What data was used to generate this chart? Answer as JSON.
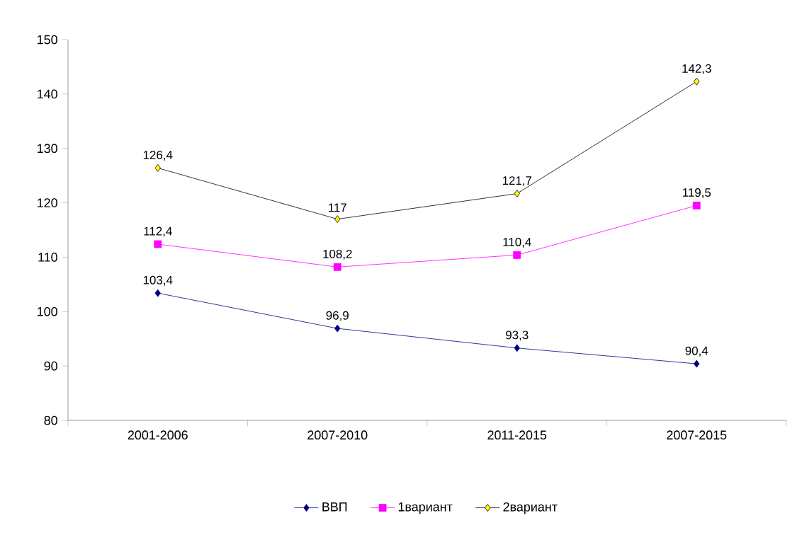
{
  "chart_data": {
    "type": "line",
    "categories": [
      "2001-2006",
      "2007-2010",
      "2011-2015",
      "2007-2015"
    ],
    "series": [
      {
        "name": "ВВП",
        "color": "#000080",
        "marker": "diamond",
        "values": [
          103.4,
          96.9,
          93.3,
          90.4
        ],
        "value_labels": [
          "103,4",
          "96,9",
          "93,3",
          "90,4"
        ]
      },
      {
        "name": "1вариант",
        "color": "#ff00ff",
        "marker": "square",
        "values": [
          112.4,
          108.2,
          110.4,
          119.5
        ],
        "value_labels": [
          "112,4",
          "108,2",
          "110,4",
          "119,5"
        ]
      },
      {
        "name": "2вариант",
        "color": "#ffff00",
        "marker": "diamond",
        "values": [
          126.4,
          117,
          121.7,
          142.3
        ],
        "value_labels": [
          "126,4",
          "117",
          "121,7",
          "142,3"
        ]
      }
    ],
    "ylim": [
      80,
      150
    ],
    "yticks": [
      80,
      90,
      100,
      110,
      120,
      130,
      140,
      150
    ],
    "grid": false,
    "legend": "bottom",
    "line_style": "solid"
  }
}
